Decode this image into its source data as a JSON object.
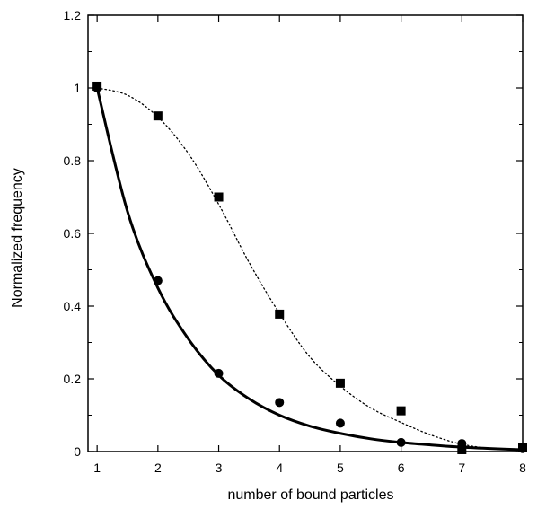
{
  "chart_data": {
    "type": "scatter",
    "title": "",
    "xlabel": "number of bound particles",
    "ylabel": "Normalized frequency",
    "xlim": [
      0.85,
      8
    ],
    "ylim": [
      0,
      1.2
    ],
    "xticks": [
      1,
      2,
      3,
      4,
      5,
      6,
      7,
      8
    ],
    "yticks": [
      0,
      0.2,
      0.4,
      0.6,
      0.8,
      1,
      1.2
    ],
    "ytick_labels": [
      "0",
      "0.2",
      "0.4",
      "0.6",
      "0.8",
      "1",
      "1.2"
    ],
    "grid": false,
    "legend": "none",
    "series": [
      {
        "marker": "square",
        "x": [
          1,
          2,
          3,
          4,
          5,
          6,
          7,
          8
        ],
        "values": [
          1.005,
          0.923,
          0.7,
          0.378,
          0.188,
          0.112,
          0.005,
          0.01
        ],
        "fit": {
          "style": "dotted",
          "x": [
            1,
            1.5,
            2,
            2.5,
            3,
            3.5,
            4,
            4.5,
            5,
            5.5,
            6,
            6.5,
            7,
            7.5,
            8
          ],
          "values": [
            1.0,
            0.98,
            0.92,
            0.82,
            0.68,
            0.52,
            0.38,
            0.26,
            0.18,
            0.12,
            0.08,
            0.045,
            0.02,
            0.008,
            0.003
          ]
        }
      },
      {
        "marker": "circle",
        "x": [
          1,
          2,
          3,
          4,
          5,
          6,
          7,
          8
        ],
        "values": [
          1.0,
          0.47,
          0.215,
          0.135,
          0.078,
          0.025,
          0.022,
          0.008
        ],
        "fit": {
          "style": "solid",
          "x": [
            1,
            1.5,
            2,
            2.5,
            3,
            3.5,
            4,
            4.5,
            5,
            5.5,
            6,
            6.5,
            7,
            7.5,
            8
          ],
          "values": [
            1.0,
            0.66,
            0.45,
            0.31,
            0.21,
            0.145,
            0.1,
            0.07,
            0.05,
            0.035,
            0.025,
            0.018,
            0.012,
            0.008,
            0.005
          ]
        }
      }
    ]
  }
}
